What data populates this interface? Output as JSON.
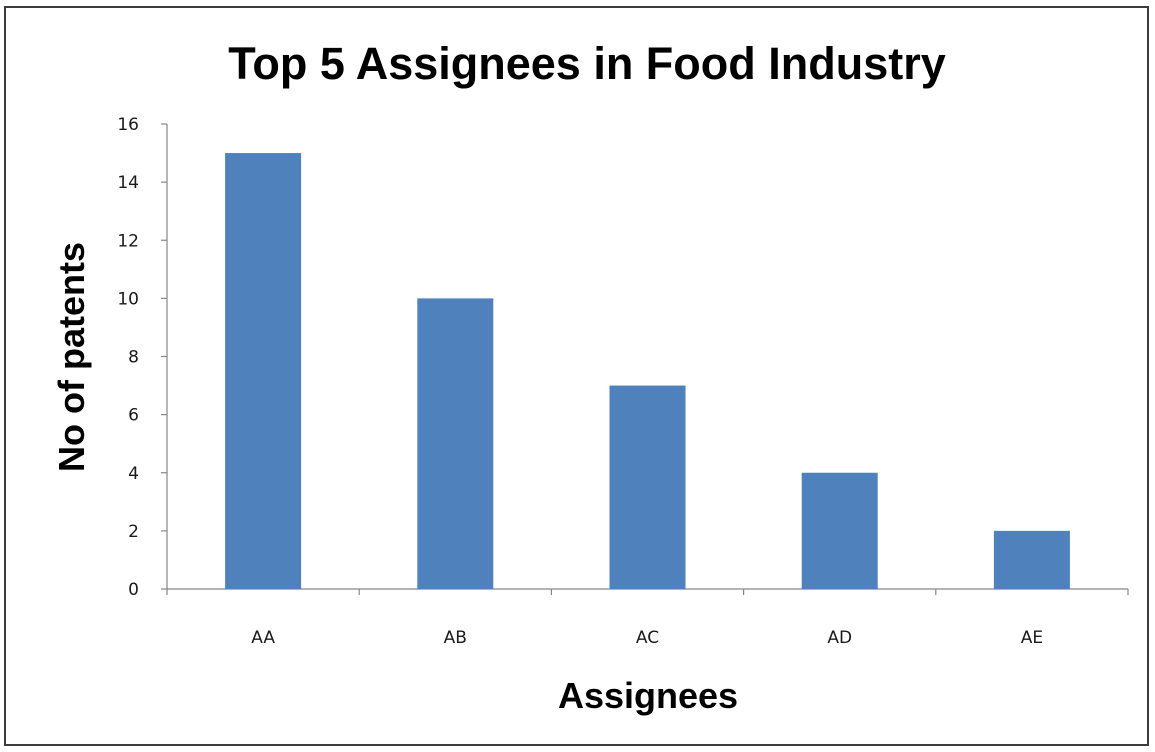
{
  "chart_data": {
    "type": "bar",
    "title": "Top 5 Assignees in Food Industry",
    "xlabel": "Assignees",
    "ylabel": "No of patents",
    "categories": [
      "AA",
      "AB",
      "AC",
      "AD",
      "AE"
    ],
    "values": [
      15,
      10,
      7,
      4,
      2
    ],
    "ylim": [
      0,
      16
    ],
    "yticks": [
      0,
      2,
      4,
      6,
      8,
      10,
      12,
      14,
      16
    ],
    "grid": false,
    "legend": "none",
    "bar_color": "#4F81BD"
  }
}
